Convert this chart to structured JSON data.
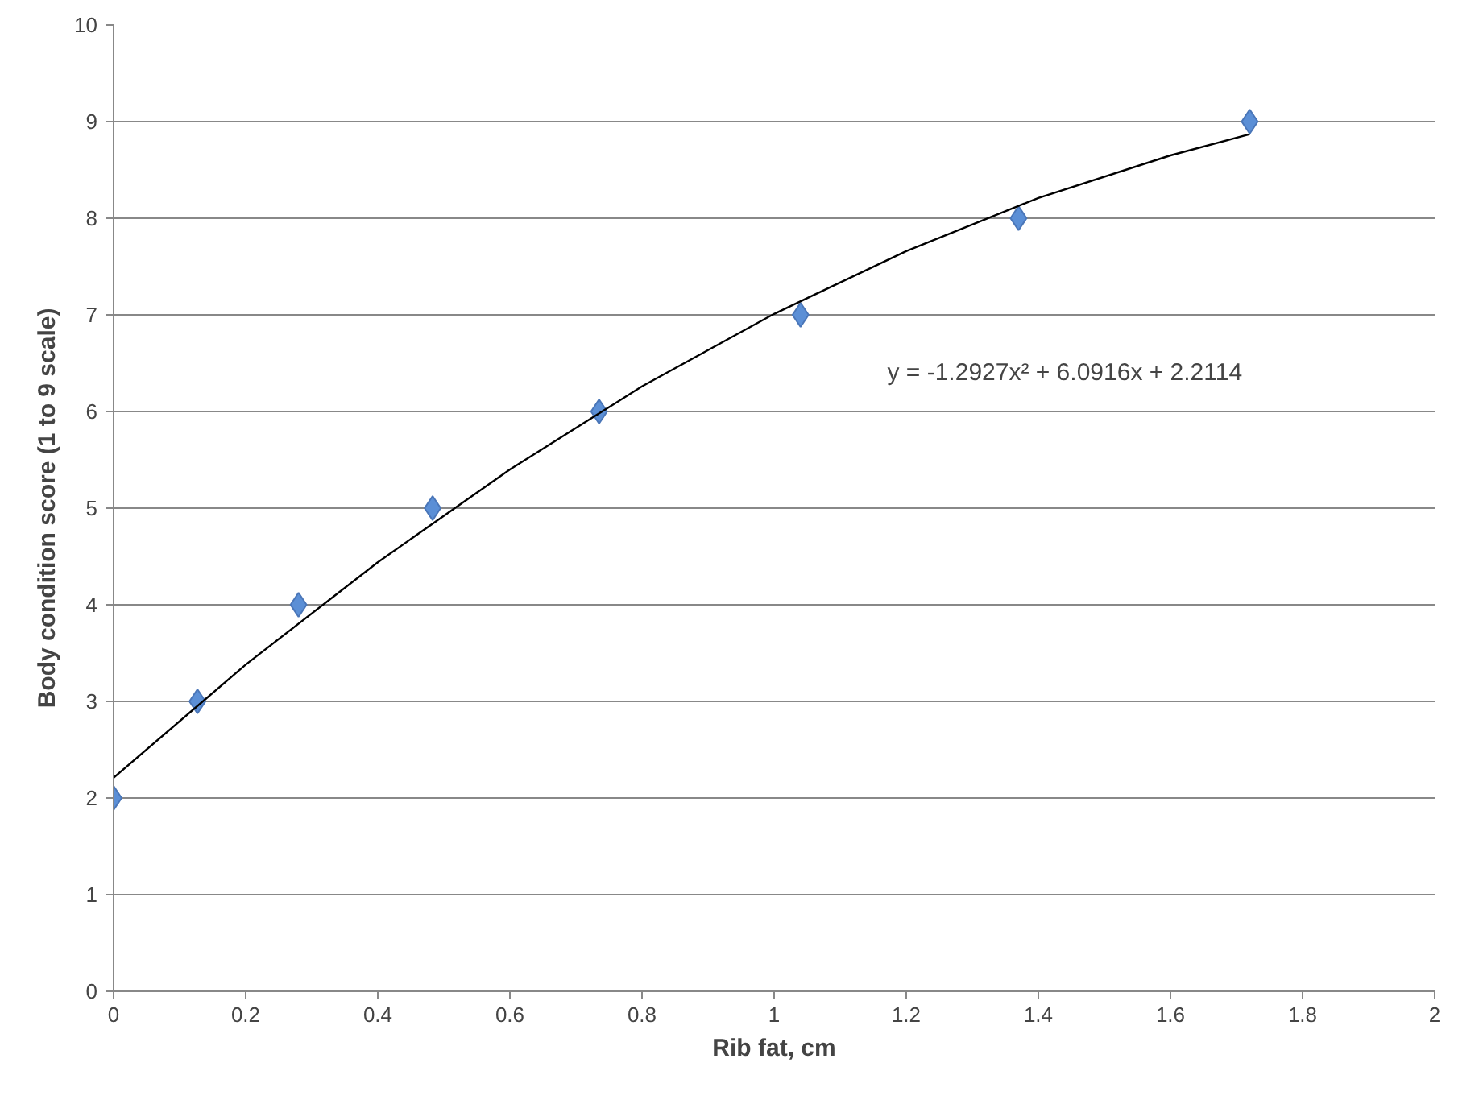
{
  "chart_data": {
    "type": "scatter",
    "xlabel": "Rib fat, cm",
    "ylabel": "Body condition score (1 to 9 scale)",
    "series": [
      {
        "color": "#5b8fd6",
        "marker": "diamond",
        "x": [
          0,
          0.127,
          0.28,
          0.483,
          0.735,
          1.04,
          1.37,
          1.72
        ],
        "values": [
          2,
          3,
          4,
          5,
          6,
          7,
          8,
          9
        ]
      },
      {
        "type": "line",
        "color": "#000000",
        "marker": "none",
        "x": [
          0,
          0.2,
          0.4,
          0.6,
          0.8,
          1.0,
          1.2,
          1.4,
          1.6,
          1.72
        ],
        "values": [
          2.21,
          3.38,
          4.44,
          5.4,
          6.26,
          7.01,
          7.66,
          8.21,
          8.65,
          8.87
        ]
      }
    ],
    "annotations": [
      "y = -1.2927x² + 6.0916x + 2.2114"
    ],
    "xlim": [
      0,
      2
    ],
    "xticks": [
      0,
      0.2,
      0.4,
      0.6,
      0.8,
      1,
      1.2,
      1.4,
      1.6,
      1.8,
      2
    ],
    "ylim": [
      0,
      10
    ],
    "yticks": [
      0,
      1,
      2,
      3,
      4,
      5,
      6,
      7,
      8,
      9,
      10
    ],
    "grid": "y"
  }
}
